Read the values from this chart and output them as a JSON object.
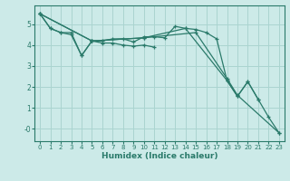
{
  "title": "",
  "xlabel": "Humidex (Indice chaleur)",
  "bg_color": "#cceae8",
  "grid_color": "#aad4d0",
  "line_color": "#2a7a6a",
  "spine_color": "#2a7a6a",
  "xlim": [
    -0.5,
    23.5
  ],
  "ylim": [
    -0.6,
    5.9
  ],
  "yticks": [
    0,
    1,
    2,
    3,
    4,
    5
  ],
  "ytick_labels": [
    "-0",
    "1",
    "2",
    "3",
    "4",
    "5"
  ],
  "xticks": [
    0,
    1,
    2,
    3,
    4,
    5,
    6,
    7,
    8,
    9,
    10,
    11,
    12,
    13,
    14,
    15,
    16,
    17,
    18,
    19,
    20,
    21,
    22,
    23
  ],
  "line1_x": [
    0,
    1,
    2,
    3,
    4,
    5,
    6,
    7,
    8,
    9,
    10,
    11,
    12,
    13,
    14,
    15,
    16,
    17,
    18,
    19,
    20,
    21
  ],
  "line1_y": [
    5.5,
    4.8,
    4.6,
    4.6,
    3.5,
    4.2,
    4.2,
    4.3,
    4.3,
    4.15,
    4.4,
    4.4,
    4.35,
    4.9,
    4.8,
    4.75,
    4.6,
    4.3,
    2.3,
    1.55,
    2.25,
    1.4
  ],
  "line2_x": [
    0,
    1,
    2,
    3,
    4,
    5,
    6,
    7,
    8,
    9,
    10,
    11
  ],
  "line2_y": [
    5.5,
    4.8,
    4.6,
    4.5,
    3.5,
    4.2,
    4.1,
    4.1,
    4.0,
    3.95,
    4.0,
    3.9
  ],
  "line3_x": [
    0,
    5,
    10,
    14,
    18,
    19,
    20,
    21,
    22,
    23
  ],
  "line3_y": [
    5.5,
    4.2,
    4.35,
    4.8,
    2.3,
    1.55,
    2.25,
    1.4,
    0.55,
    -0.2
  ],
  "line4_x": [
    0,
    5,
    10,
    15,
    18,
    19,
    23
  ],
  "line4_y": [
    5.5,
    4.2,
    4.35,
    4.6,
    2.4,
    1.6,
    -0.2
  ],
  "xlabel_fontsize": 6.5,
  "tick_fontsize": 5.0,
  "linewidth": 0.9,
  "markersize": 3.5
}
